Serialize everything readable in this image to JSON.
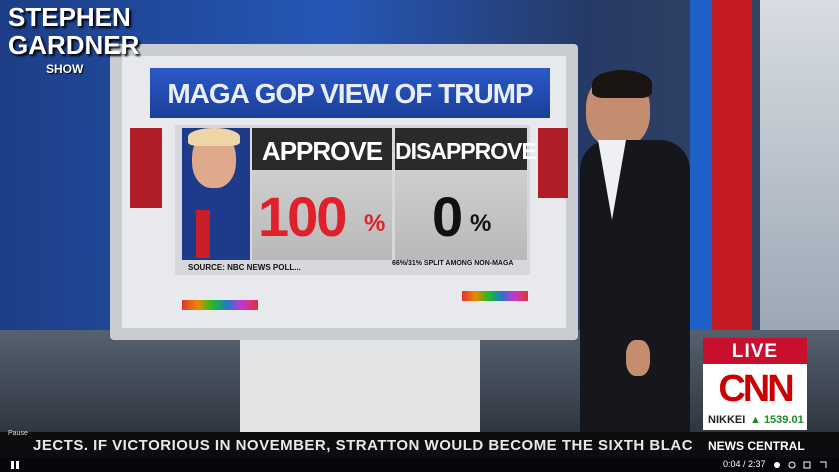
{
  "logo": {
    "lines": [
      "STEPHEN",
      "GARDNER",
      "SHOW"
    ]
  },
  "screen": {
    "title": "MAGA GOP VIEW OF TRUMP",
    "columns": [
      {
        "header": "APPROVE",
        "value": "100",
        "unit": "%"
      },
      {
        "header": "DISAPPROVE",
        "value": "0",
        "unit": "%"
      }
    ],
    "source": "SOURCE: NBC NEWS POLL...",
    "note": "66%/31% SPLIT AMONG NON-MAGA"
  },
  "bug": {
    "live": "LIVE",
    "network": "CNN",
    "index": "NIKKEI",
    "index_value": "▲ 1539.01"
  },
  "ticker": {
    "text": "JECTS. IF VICTORIOUS IN NOVEMBER, STRATTON WOULD BECOME THE SIXTH BLAC",
    "show": "NEWS CENTRAL"
  },
  "player": {
    "pause_label": "Pause",
    "time": "0:04 / 2:37"
  }
}
